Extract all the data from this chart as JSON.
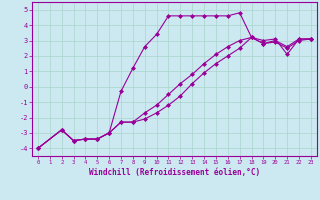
{
  "xlabel": "Windchill (Refroidissement éolien,°C)",
  "xlim": [
    -0.5,
    23.5
  ],
  "ylim": [
    -4.5,
    5.5
  ],
  "yticks": [
    -4,
    -3,
    -2,
    -1,
    0,
    1,
    2,
    3,
    4,
    5
  ],
  "xticks": [
    0,
    1,
    2,
    3,
    4,
    5,
    6,
    7,
    8,
    9,
    10,
    11,
    12,
    13,
    14,
    15,
    16,
    17,
    18,
    19,
    20,
    21,
    22,
    23
  ],
  "bg_color": "#cce8f0",
  "line_color": "#990099",
  "grid_color": "#aad4cc",
  "marker": "D",
  "markersize": 2,
  "line_width": 0.8,
  "line1_x": [
    0,
    2,
    3,
    4,
    5,
    6,
    7,
    8,
    9,
    10,
    11,
    12,
    13,
    14,
    15,
    16,
    17,
    18,
    19,
    20,
    21,
    22,
    23
  ],
  "line1_y": [
    -4.0,
    -2.8,
    -3.5,
    -3.4,
    -3.4,
    -3.0,
    -0.3,
    1.2,
    2.6,
    3.4,
    4.6,
    4.6,
    4.6,
    4.6,
    4.6,
    4.6,
    4.8,
    3.2,
    3.0,
    3.1,
    2.1,
    3.1,
    3.1
  ],
  "line2_x": [
    0,
    2,
    3,
    4,
    5,
    6,
    7,
    8,
    9,
    10,
    11,
    12,
    13,
    14,
    15,
    16,
    17,
    18,
    19,
    20,
    21,
    22,
    23
  ],
  "line2_y": [
    -4.0,
    -2.8,
    -3.5,
    -3.4,
    -3.4,
    -3.0,
    -2.3,
    -2.3,
    -2.1,
    -1.7,
    -1.2,
    -0.6,
    0.2,
    0.9,
    1.5,
    2.0,
    2.5,
    3.2,
    2.8,
    2.9,
    2.5,
    3.0,
    3.1
  ],
  "line3_x": [
    0,
    2,
    3,
    4,
    5,
    6,
    7,
    8,
    9,
    10,
    11,
    12,
    13,
    14,
    15,
    16,
    17,
    18,
    19,
    20,
    21,
    22,
    23
  ],
  "line3_y": [
    -4.0,
    -2.8,
    -3.5,
    -3.4,
    -3.4,
    -3.0,
    -2.3,
    -2.3,
    -1.7,
    -1.2,
    -0.5,
    0.2,
    0.8,
    1.5,
    2.1,
    2.6,
    3.0,
    3.2,
    2.8,
    3.0,
    2.6,
    3.1,
    3.1
  ]
}
